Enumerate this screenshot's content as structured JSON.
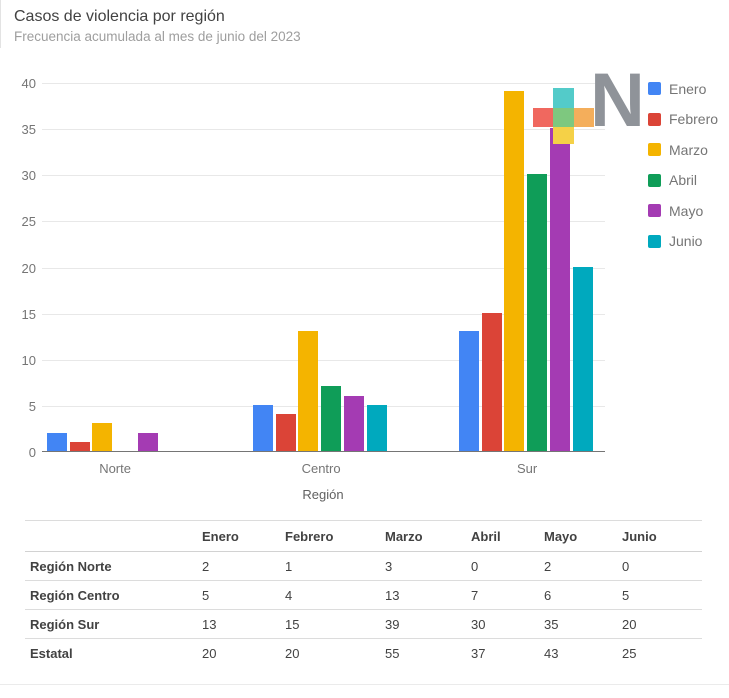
{
  "header": {
    "title": "Casos de violencia por región",
    "subtitle": "Frecuencia acumulada al mes de junio del 2023"
  },
  "chart_data": {
    "type": "bar",
    "title": "Casos de violencia por región",
    "subtitle": "Frecuencia acumulada al mes de junio del 2023",
    "categories": [
      "Norte",
      "Centro",
      "Sur"
    ],
    "series": [
      {
        "name": "Enero",
        "color": "#4285F4",
        "values": [
          2,
          5,
          13
        ]
      },
      {
        "name": "Febrero",
        "color": "#DB4437",
        "values": [
          1,
          4,
          15
        ]
      },
      {
        "name": "Marzo",
        "color": "#F4B400",
        "values": [
          3,
          13,
          39
        ]
      },
      {
        "name": "Abril",
        "color": "#0F9D58",
        "values": [
          0,
          7,
          30
        ]
      },
      {
        "name": "Mayo",
        "color": "#A43BB3",
        "values": [
          2,
          6,
          35
        ]
      },
      {
        "name": "Junio",
        "color": "#00A9BE",
        "values": [
          0,
          5,
          20
        ]
      }
    ],
    "xlabel": "Región",
    "ylabel": "",
    "ylim": [
      0,
      40
    ],
    "ytick_step": 5,
    "yticks": [
      0,
      5,
      10,
      15,
      20,
      25,
      30,
      35,
      40
    ],
    "grid": true,
    "legend_position": "right"
  },
  "watermark": {
    "letter": "N",
    "square_colors": {
      "top_teal": "#53cbc9",
      "left_salmon": "#f0685f",
      "center_green": "#7ec87f",
      "right_orange": "#f4ae5b",
      "bottom_yellow": "#f5d147"
    }
  },
  "table": {
    "columns": [
      "",
      "Enero",
      "Febrero",
      "Marzo",
      "Abril",
      "Mayo",
      "Junio"
    ],
    "rows": [
      {
        "label": "Región Norte",
        "values": [
          2,
          1,
          3,
          0,
          2,
          0
        ]
      },
      {
        "label": "Región Centro",
        "values": [
          5,
          4,
          13,
          7,
          6,
          5
        ]
      },
      {
        "label": "Región Sur",
        "values": [
          13,
          15,
          39,
          30,
          35,
          20
        ]
      },
      {
        "label": "Estatal",
        "values": [
          20,
          20,
          55,
          37,
          43,
          25
        ]
      }
    ]
  }
}
